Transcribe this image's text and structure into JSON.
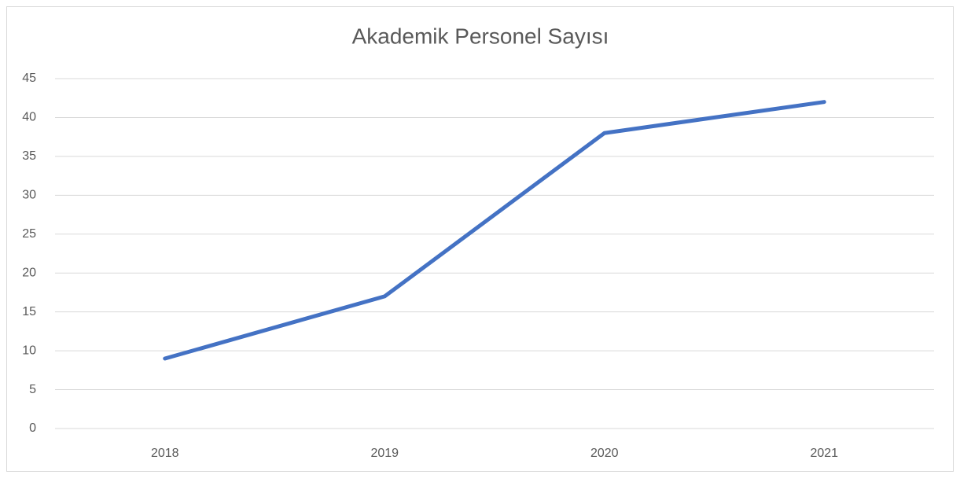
{
  "chart_data": {
    "type": "line",
    "title": "Akademik Personel Sayısı",
    "categories": [
      "2018",
      "2019",
      "2020",
      "2021"
    ],
    "values": [
      9,
      17,
      38,
      42
    ],
    "color": "#4472c4",
    "ylim": [
      0,
      45
    ],
    "yticks": [
      0,
      5,
      10,
      15,
      20,
      25,
      30,
      35,
      40,
      45
    ],
    "grid": true
  }
}
